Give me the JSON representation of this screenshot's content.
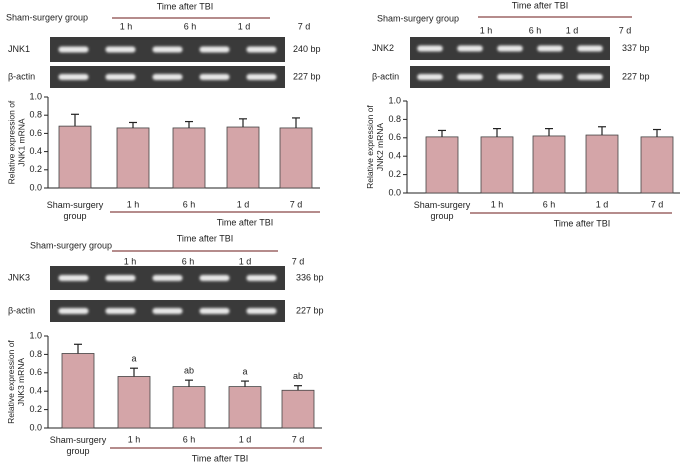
{
  "chart_data": [
    {
      "type": "bar",
      "y_label": "Relative expression of JNK1 mRNA",
      "categories": [
        "Sham-surgery group",
        "1 h",
        "6 h",
        "1 d",
        "7 d"
      ],
      "x_group_label": "Time after TBI",
      "values": [
        0.68,
        0.66,
        0.66,
        0.67,
        0.66
      ],
      "errors": [
        0.13,
        0.06,
        0.07,
        0.09,
        0.11
      ],
      "color": "#d4a5a8",
      "ylim": [
        0,
        1.0
      ],
      "yticks": [
        {
          "value": 0,
          "label": "0.0"
        },
        {
          "value": 0.2,
          "label": "0.2"
        },
        {
          "value": 0.4,
          "label": "0.4"
        },
        {
          "value": 0.6,
          "label": "0.6"
        },
        {
          "value": 0.8,
          "label": "0.8"
        },
        {
          "value": 1.0,
          "label": "1.0"
        }
      ],
      "gel": {
        "group_label": "Sham-surgery group",
        "time_label": "Time after TBI",
        "lanes": [
          "1 h",
          "6 h",
          "1 d",
          "7 d"
        ],
        "rows": [
          {
            "label": "JNK1",
            "size": "240 bp"
          },
          {
            "label": "β-actin",
            "size": "227 bp"
          }
        ]
      }
    },
    {
      "type": "bar",
      "y_label": "Relative expression of JNK2 mRNA",
      "categories": [
        "Sham-surgery group",
        "1 h",
        "6 h",
        "1 d",
        "7 d"
      ],
      "x_group_label": "Time after TBI",
      "values": [
        0.61,
        0.61,
        0.62,
        0.63,
        0.61
      ],
      "errors": [
        0.07,
        0.09,
        0.08,
        0.09,
        0.08
      ],
      "color": "#d4a5a8",
      "ylim": [
        0,
        1.0
      ],
      "yticks": [
        {
          "value": 0,
          "label": "0.0"
        },
        {
          "value": 0.2,
          "label": "0.2"
        },
        {
          "value": 0.4,
          "label": "0.4"
        },
        {
          "value": 0.6,
          "label": "0.6"
        },
        {
          "value": 0.8,
          "label": "0.8"
        },
        {
          "value": 1.0,
          "label": "1.0"
        }
      ],
      "gel": {
        "group_label": "Sham-surgery group",
        "time_label": "Time after TBI",
        "lanes": [
          "1 h",
          "6 h",
          "1 d",
          "7 d"
        ],
        "rows": [
          {
            "label": "JNK2",
            "size": "337 bp"
          },
          {
            "label": "β-actin",
            "size": "227 bp"
          }
        ]
      }
    },
    {
      "type": "bar",
      "y_label": "Relative expression of JNK3 mRNA",
      "categories": [
        "Sham-surgery group",
        "1 h",
        "6 h",
        "1 d",
        "7 d"
      ],
      "x_group_label": "Time after TBI",
      "values": [
        0.81,
        0.56,
        0.45,
        0.45,
        0.41
      ],
      "errors": [
        0.1,
        0.09,
        0.07,
        0.06,
        0.05
      ],
      "color": "#d4a5a8",
      "annotations": [
        null,
        "a",
        "ab",
        "a",
        "ab"
      ],
      "ylim": [
        0,
        1.0
      ],
      "yticks": [
        {
          "value": 0,
          "label": "0.0"
        },
        {
          "value": 0.2,
          "label": "0.2"
        },
        {
          "value": 0.4,
          "label": "0.4"
        },
        {
          "value": 0.6,
          "label": "0.6"
        },
        {
          "value": 0.8,
          "label": "0.8"
        },
        {
          "value": 1.0,
          "label": "1.0"
        }
      ],
      "gel": {
        "group_label": "Sham-surgery group",
        "time_label": "Time after TBI",
        "lanes": [
          "1 h",
          "6 h",
          "1 d",
          "7 d"
        ],
        "rows": [
          {
            "label": "JNK3",
            "size": "336 bp"
          },
          {
            "label": "β-actin",
            "size": "227 bp"
          }
        ]
      }
    }
  ]
}
